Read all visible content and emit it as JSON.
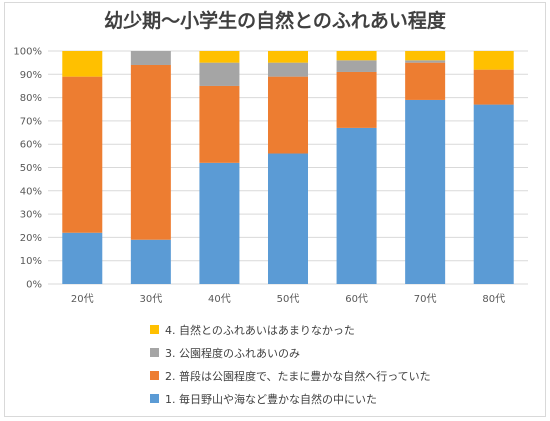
{
  "chart_data": {
    "type": "bar",
    "stacked": true,
    "title": "幼少期～小学生の自然とのふれあい程度",
    "categories": [
      "20代",
      "30代",
      "40代",
      "50代",
      "60代",
      "70代",
      "80代"
    ],
    "y_ticks": [
      "0%",
      "10%",
      "20%",
      "30%",
      "40%",
      "50%",
      "60%",
      "70%",
      "80%",
      "90%",
      "100%"
    ],
    "ylim": [
      0,
      100
    ],
    "grid": true,
    "legend_position": "bottom",
    "series": [
      {
        "name": "1. 毎日野山や海など豊かな自然の中にいた",
        "color": "#5b9bd5",
        "values": [
          22,
          19,
          52,
          56,
          67,
          79,
          77
        ]
      },
      {
        "name": "2. 普段は公園程度で、たまに豊かな自然へ行っていた",
        "color": "#ed7d31",
        "values": [
          67,
          75,
          33,
          33,
          24,
          16,
          15
        ]
      },
      {
        "name": "3. 公園程度のふれあいのみ",
        "color": "#a5a5a5",
        "values": [
          0,
          6,
          10,
          6,
          5,
          1,
          0
        ]
      },
      {
        "name": "4. 自然とのふれあいはあまりなかった",
        "color": "#ffc000",
        "values": [
          11,
          0,
          5,
          5,
          4,
          4,
          8
        ]
      }
    ],
    "legend_order": [
      3,
      2,
      1,
      0
    ]
  }
}
